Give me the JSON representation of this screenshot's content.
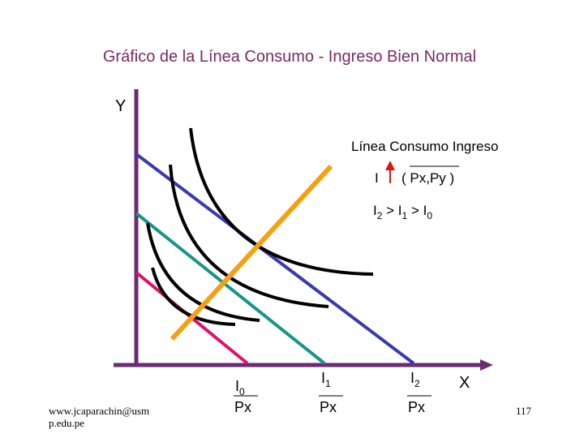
{
  "title": "Gráfico de la Línea Consumo - Ingreso Bien Normal",
  "axes": {
    "y_label": "Y",
    "x_label": "X"
  },
  "legend": {
    "heading": "Línea Consumo Ingreso",
    "income": "I",
    "prices": "( Px,Py )",
    "inequality": [
      "I",
      "2",
      " > I",
      "1",
      " > I",
      "0"
    ]
  },
  "intercepts": [
    {
      "base": "I",
      "sub": "0",
      "denominator": "Px"
    },
    {
      "base": "I",
      "sub": "1",
      "denominator": "Px"
    },
    {
      "base": "I",
      "sub": "2",
      "denominator": "Px"
    }
  ],
  "footer": {
    "source": [
      "www.jcaparachin@usm",
      "p.edu.pe"
    ],
    "page": "117"
  }
}
